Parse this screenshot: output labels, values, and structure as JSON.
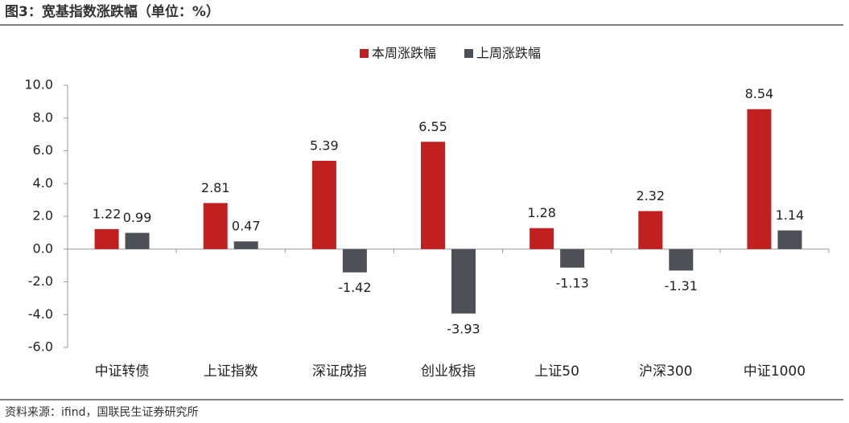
{
  "chart_data": {
    "type": "bar",
    "title": "图3：宽基指数涨跌幅（单位：%）",
    "source": "资料来源：ifind，国联民生证券研究所",
    "categories": [
      "中证转债",
      "上证指数",
      "深证成指",
      "创业板指",
      "上证50",
      "沪深300",
      "中证1000"
    ],
    "series": [
      {
        "name": "本周涨跌幅",
        "color": "#c0201f",
        "values": [
          1.22,
          2.81,
          5.39,
          6.55,
          1.28,
          2.32,
          8.54
        ]
      },
      {
        "name": "上周涨跌幅",
        "color": "#4d5157",
        "values": [
          0.99,
          0.47,
          -1.42,
          -3.93,
          -1.13,
          -1.31,
          1.14
        ]
      }
    ],
    "ylim": [
      -6,
      10
    ],
    "yticks": [
      {
        "value": -6,
        "label": "-6.0"
      },
      {
        "value": -4,
        "label": "-4.0"
      },
      {
        "value": -2,
        "label": "-2.0"
      },
      {
        "value": 0,
        "label": "0.0"
      },
      {
        "value": 2,
        "label": "2.0"
      },
      {
        "value": 4,
        "label": "4.0"
      },
      {
        "value": 6,
        "label": "6.0"
      },
      {
        "value": 8,
        "label": "8.0"
      },
      {
        "value": 10,
        "label": "10.0"
      }
    ],
    "legend": "top",
    "grid": false
  }
}
